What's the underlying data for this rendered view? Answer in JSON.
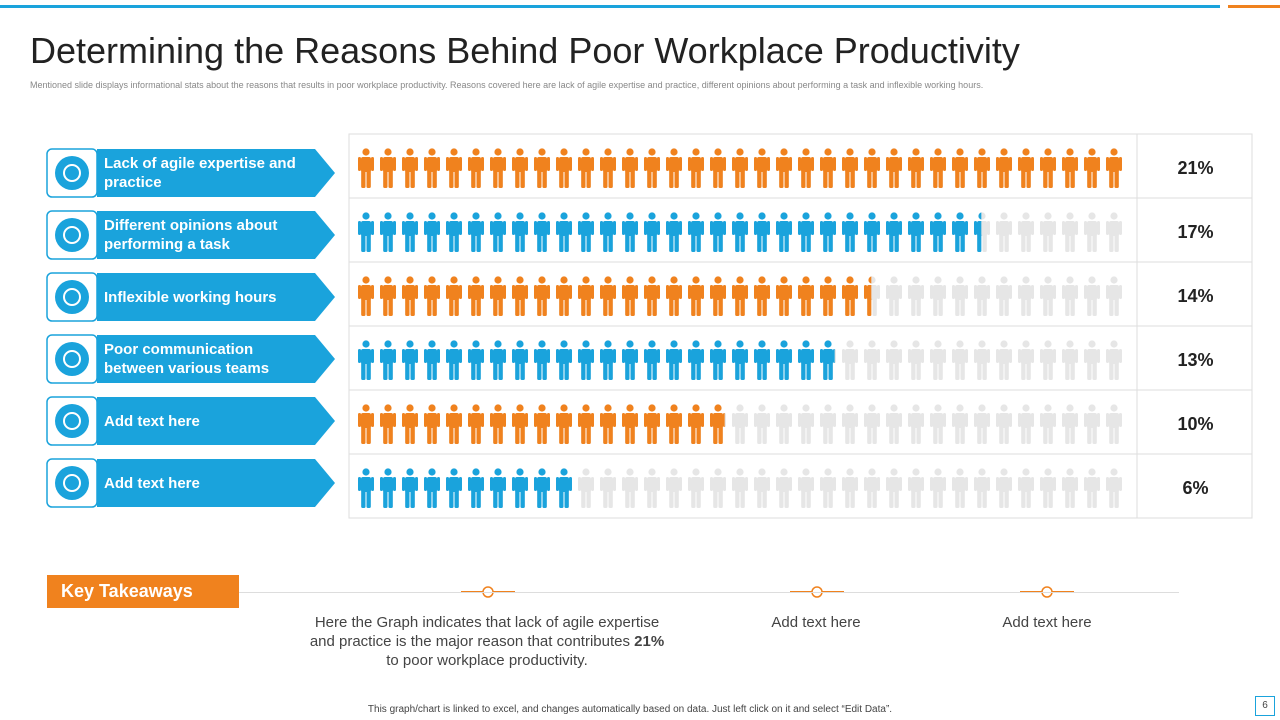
{
  "title": "Determining the Reasons Behind Poor Workplace Productivity",
  "subtitle": "Mentioned slide displays informational stats about the reasons that results in poor workplace productivity.  Reasons covered here are lack of agile expertise and practice, different opinions about performing a task and inflexible working hours.",
  "chart_data": {
    "type": "pictogram",
    "categories": [
      "Lack of agile expertise and practice",
      "Different opinions about performing a task",
      "Inflexible working hours",
      "Poor communication between various teams",
      "Add text here",
      "Add text here"
    ],
    "values": [
      21,
      17,
      14,
      13,
      10,
      6
    ],
    "value_labels": [
      "21%",
      "17%",
      "14%",
      "13%",
      "10%",
      "6%"
    ],
    "colors": [
      "#f0821e",
      "#1aa3dc",
      "#f0821e",
      "#1aa3dc",
      "#f0821e",
      "#1aa3dc"
    ]
  },
  "takeaways": {
    "heading": "Key Takeaways",
    "items": [
      {
        "text": "Here the Graph indicates that lack of agile expertise and practice is the major reason that contributes",
        "bold": "21%",
        "tail": "to poor workplace productivity."
      },
      {
        "text": "Add text here"
      },
      {
        "text": "Add text here"
      }
    ]
  },
  "footer": "This graph/chart is linked to excel, and changes automatically based on data. Just left click on it and select “Edit Data”.",
  "page_number": "6"
}
